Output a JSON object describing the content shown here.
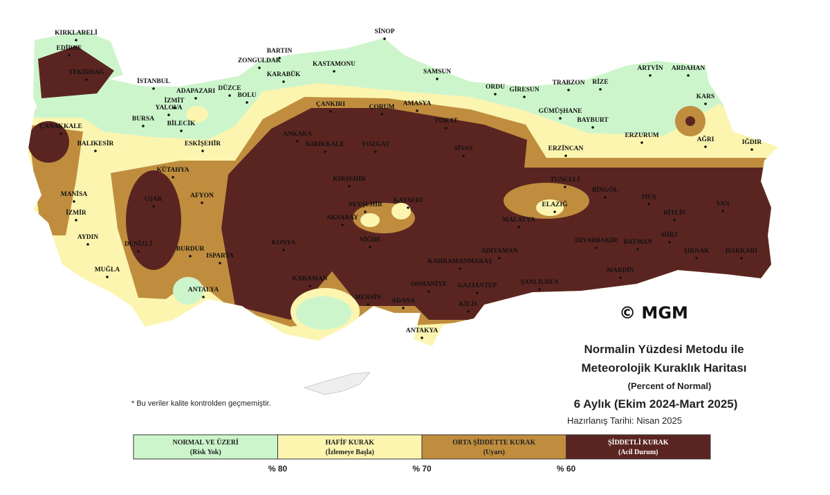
{
  "map": {
    "title_lines": [
      "Normalin Yüzdesi Metodu ile",
      "Meteorolojik Kuraklık Haritası"
    ],
    "subtitle": "(Percent of Normal)",
    "period": "6 Aylık (Ekim 2024-Mart 2025)",
    "prepared": "Hazırlanış Tarihi: Nisan 2025",
    "note": "* Bu veriler kalite kontrolden geçmemiştir.",
    "copyright": "© MGM",
    "cities": [
      "KIRKLARELİ",
      "EDİRNE",
      "TEKİRDAĞ",
      "İSTANBUL",
      "İZMİT",
      "ADAPAZARI",
      "DÜZCE",
      "BOLU",
      "YALOVA",
      "BURSA",
      "BİLECİK",
      "ZONGULDAK",
      "BARTIN",
      "KARABÜK",
      "KASTAMONU",
      "SİNOP",
      "SAMSUN",
      "ORDU",
      "GİRESUN",
      "TRABZON",
      "RİZE",
      "ARTVİN",
      "ARDAHAN",
      "KARS",
      "ÇANKIRI",
      "ÇORUM",
      "AMASYA",
      "TOKAT",
      "GÜMÜŞHANE",
      "BAYBURT",
      "ERZURUM",
      "AĞRI",
      "IĞDIR",
      "ÇANAKKALE",
      "BALIKESİR",
      "ESKİŞEHİR",
      "ANKARA",
      "KIRIKKALE",
      "YOZGAT",
      "SİVAS",
      "ERZİNCAN",
      "KÜTAHYA",
      "TUNCELİ",
      "BİNGÖL",
      "KIRŞEHİR",
      "MANİSA",
      "UŞAK",
      "AFYON",
      "MUŞ",
      "NEVŞEHİR",
      "KAYSERİ",
      "ELAZIĞ",
      "BİTLİS",
      "VAN",
      "İZMİR",
      "AKSARAY",
      "MALATYA",
      "AYDIN",
      "DENİZLİ",
      "BURDUR",
      "KONYA",
      "NİĞDE",
      "DİYARBAKIR",
      "BATMAN",
      "SİİRT",
      "ISPARTA",
      "ŞIRNAK",
      "HAKKARİ",
      "ADIYAMAN",
      "KAHRAMANMARAŞ",
      "MUĞLA",
      "MARDİN",
      "ANTALYA",
      "KARAMAN",
      "OSMANİYE",
      "GAZİANTEP",
      "ŞANLIURFA",
      "MERSİN",
      "ADANA",
      "KİLİS",
      "ANTAKYA"
    ]
  },
  "legend": {
    "items": [
      {
        "label": "NORMAL VE ÜZERİ",
        "sublabel": "(Risk Yok)",
        "color": "#ccf5cc",
        "text_color": "#222"
      },
      {
        "label": "HAFİF KURAK",
        "sublabel": "(İzlemeye Başla)",
        "color": "#fbf5b0",
        "text_color": "#222"
      },
      {
        "label": "ORTA ŞİDDETTE KURAK",
        "sublabel": "(Uyarı)",
        "color": "#c08d3e",
        "text_color": "#222"
      },
      {
        "label": "ŞİDDETLİ KURAK",
        "sublabel": "(Acil Durum)",
        "color": "#5a2521",
        "text_color": "#fff"
      }
    ],
    "thresholds": [
      "% 80",
      "% 70",
      "% 60"
    ]
  }
}
